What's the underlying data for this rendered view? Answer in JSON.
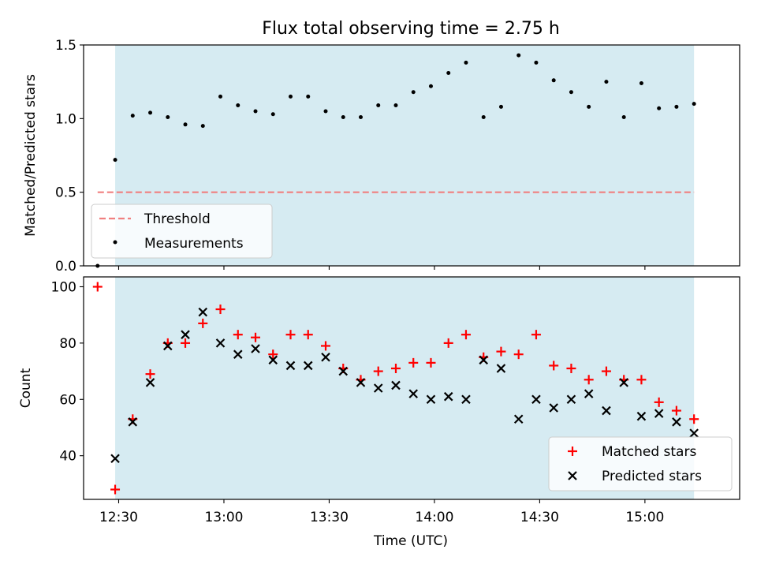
{
  "figure": {
    "title": "Flux total observing time = 2.75 h",
    "xlabel": "Time (UTC)"
  },
  "colors": {
    "shade": "#add8e6",
    "threshold": "#f08080",
    "measurement": "#000000",
    "matched": "#ff0000",
    "predicted": "#000000"
  },
  "chart_data": [
    {
      "type": "scatter",
      "ylabel": "Matched/Predicted stars",
      "ylim": [
        0,
        1.5
      ],
      "yticks": [
        "0.0",
        "0.5",
        "1.0",
        "1.5"
      ],
      "xlim": [
        "12:20",
        "15:27"
      ],
      "xticks": [],
      "shaded_interval": [
        "12:29",
        "15:14"
      ],
      "legend": {
        "placement": "lower-left",
        "entries": [
          "Threshold",
          "Measurements"
        ]
      },
      "threshold": {
        "name": "Threshold",
        "value": 0.5,
        "x_range": [
          "12:24",
          "15:14"
        ]
      },
      "series": [
        {
          "name": "Measurements",
          "x": [
            "12:24",
            "12:29",
            "12:34",
            "12:39",
            "12:44",
            "12:49",
            "12:54",
            "12:59",
            "13:04",
            "13:09",
            "13:14",
            "13:19",
            "13:24",
            "13:29",
            "13:34",
            "13:39",
            "13:44",
            "13:49",
            "13:54",
            "13:59",
            "14:04",
            "14:09",
            "14:14",
            "14:19",
            "14:24",
            "14:29",
            "14:34",
            "14:39",
            "14:44",
            "14:49",
            "14:54",
            "14:59",
            "15:04",
            "15:09",
            "15:14"
          ],
          "y": [
            0.0,
            0.72,
            1.02,
            1.04,
            1.01,
            0.96,
            0.95,
            1.15,
            1.09,
            1.05,
            1.03,
            1.15,
            1.15,
            1.05,
            1.01,
            1.01,
            1.09,
            1.09,
            1.18,
            1.22,
            1.31,
            1.38,
            1.01,
            1.08,
            1.43,
            1.38,
            1.26,
            1.18,
            1.08,
            1.25,
            1.01,
            1.24,
            1.07,
            1.08,
            1.1
          ]
        }
      ]
    },
    {
      "type": "scatter",
      "ylabel": "Count",
      "ylim": [
        24.5,
        103.5
      ],
      "yticks": [
        "40",
        "60",
        "80",
        "100"
      ],
      "xlim": [
        "12:20",
        "15:27"
      ],
      "xticks": [
        "12:30",
        "13:00",
        "13:30",
        "14:00",
        "14:30",
        "15:00"
      ],
      "shaded_interval": [
        "12:29",
        "15:14"
      ],
      "legend": {
        "placement": "lower-right",
        "entries": [
          "Matched stars",
          "Predicted stars"
        ]
      },
      "series": [
        {
          "name": "Matched stars",
          "marker": "+",
          "x": [
            "12:24",
            "12:29",
            "12:34",
            "12:39",
            "12:44",
            "12:49",
            "12:54",
            "12:59",
            "13:04",
            "13:09",
            "13:14",
            "13:19",
            "13:24",
            "13:29",
            "13:34",
            "13:39",
            "13:44",
            "13:49",
            "13:54",
            "13:59",
            "14:04",
            "14:09",
            "14:14",
            "14:19",
            "14:24",
            "14:29",
            "14:34",
            "14:39",
            "14:44",
            "14:49",
            "14:54",
            "14:59",
            "15:04",
            "15:09",
            "15:14"
          ],
          "y": [
            100,
            28,
            53,
            69,
            80,
            80,
            87,
            92,
            83,
            82,
            76,
            83,
            83,
            79,
            71,
            67,
            70,
            71,
            73,
            73,
            80,
            83,
            75,
            77,
            76,
            83,
            72,
            71,
            67,
            70,
            67,
            67,
            59,
            56,
            53
          ]
        },
        {
          "name": "Predicted stars",
          "marker": "x",
          "x": [
            "12:29",
            "12:34",
            "12:39",
            "12:44",
            "12:49",
            "12:54",
            "12:59",
            "13:04",
            "13:09",
            "13:14",
            "13:19",
            "13:24",
            "13:29",
            "13:34",
            "13:39",
            "13:44",
            "13:49",
            "13:54",
            "13:59",
            "14:04",
            "14:09",
            "14:14",
            "14:19",
            "14:24",
            "14:29",
            "14:34",
            "14:39",
            "14:44",
            "14:49",
            "14:54",
            "14:59",
            "15:04",
            "15:09",
            "15:14"
          ],
          "y": [
            39,
            52,
            66,
            79,
            83,
            91,
            80,
            76,
            78,
            74,
            72,
            72,
            75,
            70,
            66,
            64,
            65,
            62,
            60,
            61,
            60,
            74,
            71,
            53,
            60,
            57,
            60,
            62,
            56,
            66,
            54,
            55,
            52,
            48
          ]
        }
      ]
    }
  ]
}
